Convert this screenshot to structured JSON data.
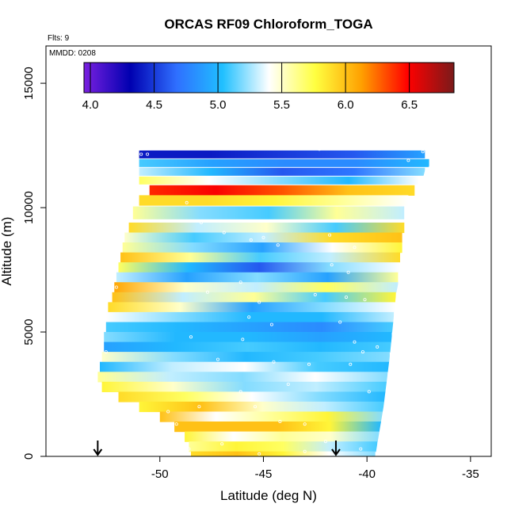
{
  "chart_data": {
    "type": "heatmap",
    "title": "ORCAS RF09 Chloroform_TOGA",
    "note_flights": "Flts: 9",
    "note_date": "MMDD: 0208",
    "xlabel": "Latitude (deg N)",
    "ylabel": "Altitude (m)",
    "xlim": [
      -55.5,
      -34.0
    ],
    "ylim": [
      0,
      16500
    ],
    "xticks": [
      -50,
      -45,
      -40,
      -35
    ],
    "xtick_labels": [
      "-50",
      "-45",
      "-40",
      "-35"
    ],
    "yticks": [
      0,
      5000,
      10000,
      15000
    ],
    "ytick_labels": [
      "0",
      "5000",
      "10000",
      "15000"
    ],
    "colorbar": {
      "range": [
        3.95,
        6.85
      ],
      "ticks": [
        4.0,
        4.5,
        5.0,
        5.5,
        6.0,
        6.5
      ],
      "tick_labels": [
        "4.0",
        "4.5",
        "5.0",
        "5.5",
        "6.0",
        "6.5"
      ],
      "colors": [
        "#7a20e0",
        "#0000b0",
        "#2f6fff",
        "#20c0ff",
        "#ffffff",
        "#ffff40",
        "#ffa000",
        "#ff0000",
        "#7a1a1a"
      ]
    },
    "arrows_latitude": [
      -53.0,
      -41.5
    ],
    "domain_outline": {
      "left_edge": [
        [
          -53.0,
          0
        ],
        [
          -53.0,
          3500
        ],
        [
          -52.6,
          6000
        ],
        [
          -52.2,
          8000
        ],
        [
          -51.3,
          10500
        ],
        [
          -51.0,
          12300
        ]
      ],
      "right_edge": [
        [
          -39.6,
          0
        ],
        [
          -39.2,
          2000
        ],
        [
          -38.9,
          4000
        ],
        [
          -38.6,
          6500
        ],
        [
          -38.0,
          9000
        ],
        [
          -37.2,
          11500
        ],
        [
          -36.2,
          12300
        ],
        [
          -35.0,
          12700
        ]
      ],
      "top_edge": [
        [
          -51.0,
          12300
        ],
        [
          -43.5,
          12450
        ],
        [
          -37.0,
          12700
        ],
        [
          -35.0,
          12700
        ]
      ]
    },
    "bands": [
      {
        "alt": 12150,
        "thick": 300,
        "start": -51.0,
        "end": -37.2,
        "values": [
          4.4,
          4.4,
          4.5,
          4.6,
          4.9
        ]
      },
      {
        "alt": 11800,
        "thick": 300,
        "start": -51.0,
        "end": -37.0,
        "values": [
          5.1,
          4.9,
          4.8,
          4.8,
          5.0
        ]
      },
      {
        "alt": 11450,
        "thick": 300,
        "start": -51.0,
        "end": -37.2,
        "values": [
          5.3,
          5.0,
          4.6,
          4.7,
          5.2
        ]
      },
      {
        "alt": 11100,
        "thick": 300,
        "start": -51.0,
        "end": -37.5,
        "values": [
          5.7,
          5.4,
          5.2,
          5.0,
          5.4
        ]
      },
      {
        "alt": 10700,
        "thick": 400,
        "start": -50.5,
        "end": -37.7,
        "values": [
          6.4,
          6.5,
          6.3,
          6.0,
          5.9
        ]
      },
      {
        "alt": 10300,
        "thick": 400,
        "start": -51.0,
        "end": -38.0,
        "values": [
          5.9,
          5.9,
          5.8,
          5.6,
          5.4
        ]
      },
      {
        "alt": 9800,
        "thick": 500,
        "start": -51.3,
        "end": -38.2,
        "values": [
          5.6,
          5.2,
          5.1,
          5.6,
          5.3
        ]
      },
      {
        "alt": 9200,
        "thick": 400,
        "start": -51.5,
        "end": -38.2,
        "values": [
          5.9,
          5.3,
          5.5,
          5.1,
          5.9
        ]
      },
      {
        "alt": 8800,
        "thick": 400,
        "start": -51.7,
        "end": -38.3,
        "values": [
          5.5,
          5.1,
          5.3,
          5.9,
          6.0
        ]
      },
      {
        "alt": 8400,
        "thick": 400,
        "start": -51.8,
        "end": -38.3,
        "values": [
          5.6,
          5.2,
          4.9,
          5.4,
          5.8
        ]
      },
      {
        "alt": 8000,
        "thick": 400,
        "start": -51.9,
        "end": -38.4,
        "values": [
          6.0,
          5.6,
          5.1,
          5.3,
          5.9
        ]
      },
      {
        "alt": 7600,
        "thick": 400,
        "start": -52.0,
        "end": -38.4,
        "values": [
          5.7,
          5.0,
          4.6,
          5.2,
          5.4
        ]
      },
      {
        "alt": 7200,
        "thick": 400,
        "start": -52.1,
        "end": -38.5,
        "values": [
          5.3,
          4.9,
          5.2,
          4.9,
          5.6
        ]
      },
      {
        "alt": 6800,
        "thick": 400,
        "start": -52.2,
        "end": -38.5,
        "values": [
          6.1,
          5.5,
          5.3,
          5.7,
          5.3
        ]
      },
      {
        "alt": 6400,
        "thick": 400,
        "start": -52.3,
        "end": -38.6,
        "values": [
          6.0,
          5.3,
          5.6,
          5.1,
          5.8
        ]
      },
      {
        "alt": 6000,
        "thick": 400,
        "start": -52.5,
        "end": -38.6,
        "values": [
          5.9,
          5.5,
          4.9,
          5.2,
          5.4
        ]
      },
      {
        "alt": 5600,
        "thick": 400,
        "start": -52.6,
        "end": -38.7,
        "values": [
          5.4,
          5.2,
          5.0,
          5.0,
          5.3
        ]
      },
      {
        "alt": 5200,
        "thick": 400,
        "start": -52.6,
        "end": -38.7,
        "values": [
          5.1,
          5.0,
          4.9,
          4.8,
          5.1
        ]
      },
      {
        "alt": 4800,
        "thick": 400,
        "start": -52.7,
        "end": -38.8,
        "values": [
          5.2,
          5.0,
          5.0,
          4.9,
          5.0
        ]
      },
      {
        "alt": 4400,
        "thick": 400,
        "start": -52.7,
        "end": -38.8,
        "values": [
          4.9,
          5.0,
          5.1,
          5.0,
          5.1
        ]
      },
      {
        "alt": 4000,
        "thick": 400,
        "start": -52.8,
        "end": -38.9,
        "values": [
          5.5,
          5.2,
          5.0,
          5.1,
          5.2
        ]
      },
      {
        "alt": 3600,
        "thick": 400,
        "start": -52.9,
        "end": -38.9,
        "values": [
          5.0,
          5.3,
          5.4,
          5.1,
          5.0
        ]
      },
      {
        "alt": 3200,
        "thick": 400,
        "start": -53.0,
        "end": -39.0,
        "values": [
          5.6,
          5.3,
          5.2,
          5.4,
          5.2
        ]
      },
      {
        "alt": 2800,
        "thick": 400,
        "start": -52.8,
        "end": -39.0,
        "values": [
          5.8,
          5.5,
          5.2,
          5.3,
          5.1
        ]
      },
      {
        "alt": 2400,
        "thick": 400,
        "start": -52.0,
        "end": -39.1,
        "values": [
          5.9,
          5.7,
          5.4,
          5.2,
          5.0
        ]
      },
      {
        "alt": 2000,
        "thick": 400,
        "start": -51.0,
        "end": -39.1,
        "values": [
          5.8,
          6.0,
          5.5,
          5.3,
          5.1
        ]
      },
      {
        "alt": 1600,
        "thick": 400,
        "start": -50.0,
        "end": -39.2,
        "values": [
          6.0,
          5.4,
          5.6,
          5.8,
          5.2
        ]
      },
      {
        "alt": 1200,
        "thick": 400,
        "start": -49.3,
        "end": -39.3,
        "values": [
          6.0,
          6.0,
          6.0,
          5.8,
          5.0
        ]
      },
      {
        "alt": 800,
        "thick": 400,
        "start": -48.8,
        "end": -39.4,
        "values": [
          5.8,
          5.4,
          5.6,
          5.5,
          5.2
        ]
      },
      {
        "alt": 400,
        "thick": 400,
        "start": -48.6,
        "end": -39.5,
        "values": [
          5.6,
          5.8,
          5.7,
          5.3,
          5.1
        ]
      },
      {
        "alt": 100,
        "thick": 200,
        "start": -48.5,
        "end": -39.6,
        "values": [
          5.9,
          6.0,
          5.8,
          5.4,
          5.2
        ]
      }
    ],
    "samples": [
      [
        -50.9,
        12150
      ],
      [
        -50.6,
        12150
      ],
      [
        -43.2,
        12450
      ],
      [
        -42.3,
        12350
      ],
      [
        -37.0,
        12700
      ],
      [
        -36.7,
        12700
      ],
      [
        -36.4,
        12700
      ],
      [
        -36.0,
        12700
      ],
      [
        -35.7,
        12700
      ],
      [
        -35.4,
        12700
      ],
      [
        -37.3,
        12250
      ],
      [
        -38.0,
        11900
      ],
      [
        -48.7,
        10200
      ],
      [
        -48.0,
        9400
      ],
      [
        -46.9,
        9000
      ],
      [
        -45.6,
        8700
      ],
      [
        -45.0,
        8800
      ],
      [
        -44.3,
        8500
      ],
      [
        -41.8,
        8900
      ],
      [
        -40.6,
        8400
      ],
      [
        -41.7,
        7700
      ],
      [
        -40.9,
        7400
      ],
      [
        -46.1,
        7000
      ],
      [
        -52.1,
        6800
      ],
      [
        -47.7,
        6600
      ],
      [
        -45.2,
        6200
      ],
      [
        -42.5,
        6500
      ],
      [
        -41.0,
        6400
      ],
      [
        -40.1,
        6300
      ],
      [
        -45.7,
        5600
      ],
      [
        -44.6,
        5300
      ],
      [
        -41.3,
        5400
      ],
      [
        -48.5,
        4800
      ],
      [
        -46.0,
        4700
      ],
      [
        -40.6,
        4600
      ],
      [
        -40.2,
        4200
      ],
      [
        -39.5,
        4400
      ],
      [
        -47.2,
        3900
      ],
      [
        -44.5,
        3800
      ],
      [
        -42.8,
        3700
      ],
      [
        -40.8,
        3700
      ],
      [
        -52.6,
        4200
      ],
      [
        -46.1,
        2600
      ],
      [
        -43.8,
        2900
      ],
      [
        -39.9,
        2600
      ],
      [
        -48.1,
        2000
      ],
      [
        -45.4,
        2000
      ],
      [
        -49.6,
        1800
      ],
      [
        -49.2,
        1300
      ],
      [
        -43.0,
        1300
      ],
      [
        -44.2,
        1400
      ],
      [
        -48.6,
        300
      ],
      [
        -47.0,
        500
      ],
      [
        -42.0,
        600
      ],
      [
        -45.2,
        100
      ],
      [
        -43.0,
        200
      ],
      [
        -40.3,
        300
      ]
    ]
  }
}
